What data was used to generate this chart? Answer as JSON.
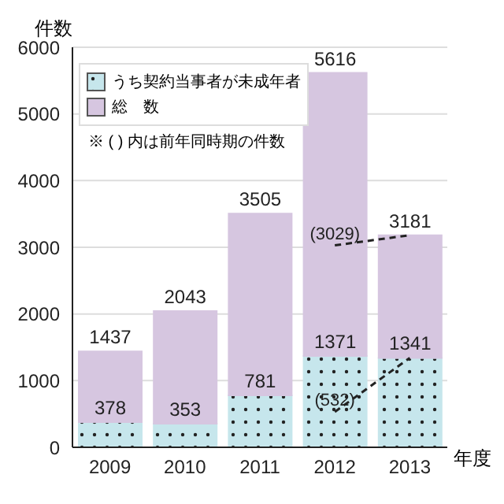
{
  "chart_data": {
    "type": "bar",
    "stacked": true,
    "ylabel": "件数",
    "xlabel": "年度",
    "categories": [
      "2009",
      "2010",
      "2011",
      "2012",
      "2013"
    ],
    "series": [
      {
        "name": "うち契約当事者が未成年者",
        "color": "#c6e6ec",
        "values": [
          378,
          353,
          781,
          1371,
          1341
        ],
        "value_labels": [
          "378",
          "353",
          "781",
          "1371",
          "1341"
        ]
      },
      {
        "name": "総　数",
        "color": "#d6c6e0",
        "values": [
          1059,
          1690,
          2724,
          4245,
          1840
        ]
      },
      {
        "type": "line",
        "color": "#222222",
        "line_style": "dashed",
        "values": [
          null,
          null,
          null,
          3029,
          3181
        ]
      },
      {
        "type": "line",
        "color": "#222222",
        "line_style": "dashed",
        "values": [
          null,
          null,
          null,
          532,
          1341
        ]
      }
    ],
    "totals": [
      "1437",
      "2043",
      "3505",
      "5616",
      "3181"
    ],
    "annotations": [
      {
        "text": "(3029)",
        "x": "2012",
        "y": 3029
      },
      {
        "text": "(532)",
        "x": "2012",
        "y": 532
      },
      "※ ( ) 内は前年同時期の件数"
    ],
    "ylim": [
      0,
      6000
    ],
    "yticks": [
      0,
      1000,
      2000,
      3000,
      4000,
      5000,
      6000
    ],
    "grid": "y",
    "legend": "top left"
  }
}
